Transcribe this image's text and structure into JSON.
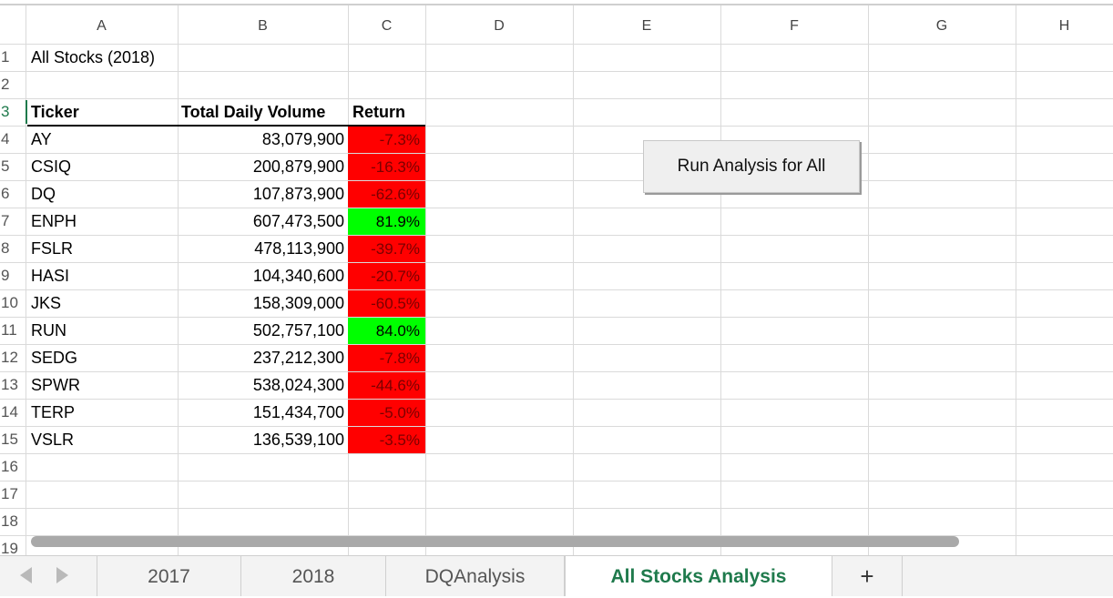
{
  "columns": [
    "A",
    "B",
    "C",
    "D",
    "E",
    "F",
    "G",
    "H"
  ],
  "row_numbers": [
    "1",
    "2",
    "3",
    "4",
    "5",
    "6",
    "7",
    "8",
    "9",
    "10",
    "11",
    "12",
    "13",
    "14",
    "15",
    "16",
    "17",
    "18",
    "19"
  ],
  "title_cell": "All Stocks (2018)",
  "headers": {
    "ticker": "Ticker",
    "volume": "Total Daily Volume",
    "return": "Return"
  },
  "rows": [
    {
      "ticker": "AY",
      "volume": "83,079,900",
      "return": "-7.3%",
      "status": "negative"
    },
    {
      "ticker": "CSIQ",
      "volume": "200,879,900",
      "return": "-16.3%",
      "status": "negative"
    },
    {
      "ticker": "DQ",
      "volume": "107,873,900",
      "return": "-62.6%",
      "status": "negative"
    },
    {
      "ticker": "ENPH",
      "volume": "607,473,500",
      "return": "81.9%",
      "status": "positive"
    },
    {
      "ticker": "FSLR",
      "volume": "478,113,900",
      "return": "-39.7%",
      "status": "negative"
    },
    {
      "ticker": "HASI",
      "volume": "104,340,600",
      "return": "-20.7%",
      "status": "negative"
    },
    {
      "ticker": "JKS",
      "volume": "158,309,000",
      "return": "-60.5%",
      "status": "negative"
    },
    {
      "ticker": "RUN",
      "volume": "502,757,100",
      "return": "84.0%",
      "status": "positive"
    },
    {
      "ticker": "SEDG",
      "volume": "237,212,300",
      "return": "-7.8%",
      "status": "negative"
    },
    {
      "ticker": "SPWR",
      "volume": "538,024,300",
      "return": "-44.6%",
      "status": "negative"
    },
    {
      "ticker": "TERP",
      "volume": "151,434,700",
      "return": "-5.0%",
      "status": "negative"
    },
    {
      "ticker": "VSLR",
      "volume": "136,539,100",
      "return": "-3.5%",
      "status": "negative"
    }
  ],
  "colors": {
    "negative_fill": "#ff0000",
    "positive_fill": "#00ff00",
    "active_accent": "#1f7a4c"
  },
  "button": {
    "label": "Run Analysis for All"
  },
  "tabs": [
    {
      "label": "2017",
      "active": false
    },
    {
      "label": "2018",
      "active": false
    },
    {
      "label": "DQAnalysis",
      "active": false
    },
    {
      "label": "All Stocks Analysis",
      "active": true
    }
  ],
  "add_sheet_label": "+",
  "icons": {
    "prev": "triangle-left-icon",
    "next": "triangle-right-icon"
  }
}
